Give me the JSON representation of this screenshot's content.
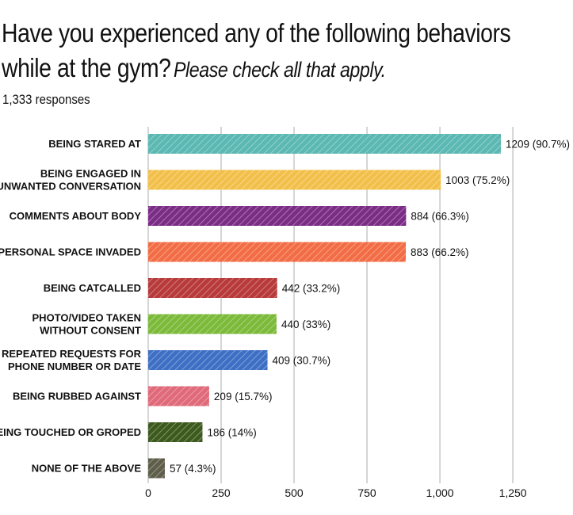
{
  "header": {
    "title_line1": "Have you experienced any of the following behaviors",
    "title_line2": "while at the gym?",
    "subtitle": "Please check all that apply.",
    "responses": "1,333 responses"
  },
  "chart_data": {
    "type": "bar",
    "orientation": "horizontal",
    "categories": [
      [
        "BEING STARED AT"
      ],
      [
        "BEING ENGAGED IN",
        "UNWANTED CONVERSATION"
      ],
      [
        "COMMENTS ABOUT BODY"
      ],
      [
        "PERSONAL SPACE INVADED"
      ],
      [
        "BEING CATCALLED"
      ],
      [
        "PHOTO/VIDEO TAKEN",
        "WITHOUT CONSENT"
      ],
      [
        "REPEATED REQUESTS FOR",
        "PHONE NUMBER OR DATE"
      ],
      [
        "BEING RUBBED AGAINST"
      ],
      [
        "BEING TOUCHED OR GROPED"
      ],
      [
        "NONE OF THE ABOVE"
      ]
    ],
    "values": [
      1209,
      1003,
      884,
      883,
      442,
      440,
      409,
      209,
      186,
      57
    ],
    "value_labels": [
      "1209 (90.7%)",
      "1003 (75.2%)",
      "884 (66.3%)",
      "883 (66.2%)",
      "442 (33.2%)",
      "440 (33%)",
      "409 (30.7%)",
      "209 (15.7%)",
      "186 (14%)",
      "57 (4.3%)"
    ],
    "colors": [
      "#5bb8b2",
      "#f2c04a",
      "#7b2d86",
      "#f26d45",
      "#b83a3a",
      "#7cba3a",
      "#3d6fc4",
      "#e06a7a",
      "#3d5a1e",
      "#5e5e4a"
    ],
    "xlim": [
      0,
      1350
    ],
    "ticks": [
      0,
      250,
      500,
      750,
      1000,
      1250
    ],
    "tick_labels": [
      "0",
      "250",
      "500",
      "750",
      "1,000",
      "1,250"
    ],
    "grid": true,
    "pattern": "diagonal-hatch"
  }
}
